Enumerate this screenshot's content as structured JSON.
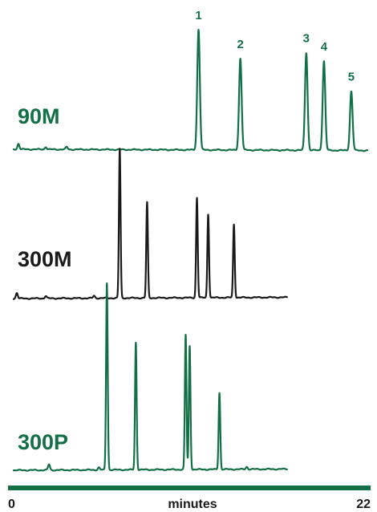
{
  "chart_data": {
    "type": "line",
    "title": "",
    "xlabel": "minutes",
    "ylabel": "",
    "xlim": [
      0,
      22
    ],
    "x_tick_labels": [
      "0",
      "22"
    ],
    "grid": false,
    "colors": {
      "green": "#137046",
      "black": "#1a1a1a"
    },
    "series": [
      {
        "name": "90M",
        "color": "#137046",
        "end_time": 22,
        "baseline_noise_times": [
          0.3,
          2.0,
          3.3
        ],
        "peaks": [
          {
            "label": "1",
            "time": 11.5,
            "height": 1.0,
            "width": 0.08
          },
          {
            "label": "2",
            "time": 14.1,
            "height": 0.76,
            "width": 0.08
          },
          {
            "label": "3",
            "time": 18.2,
            "height": 0.81,
            "width": 0.08
          },
          {
            "label": "4",
            "time": 19.3,
            "height": 0.74,
            "width": 0.08
          },
          {
            "label": "5",
            "time": 21.0,
            "height": 0.49,
            "width": 0.08
          }
        ]
      },
      {
        "name": "300M",
        "color": "#1a1a1a",
        "end_time": 17.0,
        "baseline_noise_times": [
          0.2,
          2.0,
          5.0
        ],
        "peaks": [
          {
            "label": "",
            "time": 6.6,
            "height": 1.0,
            "width": 0.05
          },
          {
            "label": "",
            "time": 8.3,
            "height": 0.64,
            "width": 0.05
          },
          {
            "label": "",
            "time": 11.4,
            "height": 0.67,
            "width": 0.05
          },
          {
            "label": "",
            "time": 12.1,
            "height": 0.56,
            "width": 0.05
          },
          {
            "label": "",
            "time": 13.7,
            "height": 0.49,
            "width": 0.05
          }
        ]
      },
      {
        "name": "300P",
        "color": "#137046",
        "end_time": 17.0,
        "baseline_noise_times": [
          2.2,
          5.3,
          14.5
        ],
        "peaks": [
          {
            "label": "",
            "time": 5.8,
            "height": 1.0,
            "width": 0.05
          },
          {
            "label": "",
            "time": 7.6,
            "height": 0.68,
            "width": 0.05
          },
          {
            "label": "",
            "time": 10.7,
            "height": 0.72,
            "width": 0.05
          },
          {
            "label": "",
            "time": 10.95,
            "height": 0.66,
            "width": 0.05
          },
          {
            "label": "",
            "time": 12.8,
            "height": 0.41,
            "width": 0.05
          }
        ]
      }
    ]
  }
}
